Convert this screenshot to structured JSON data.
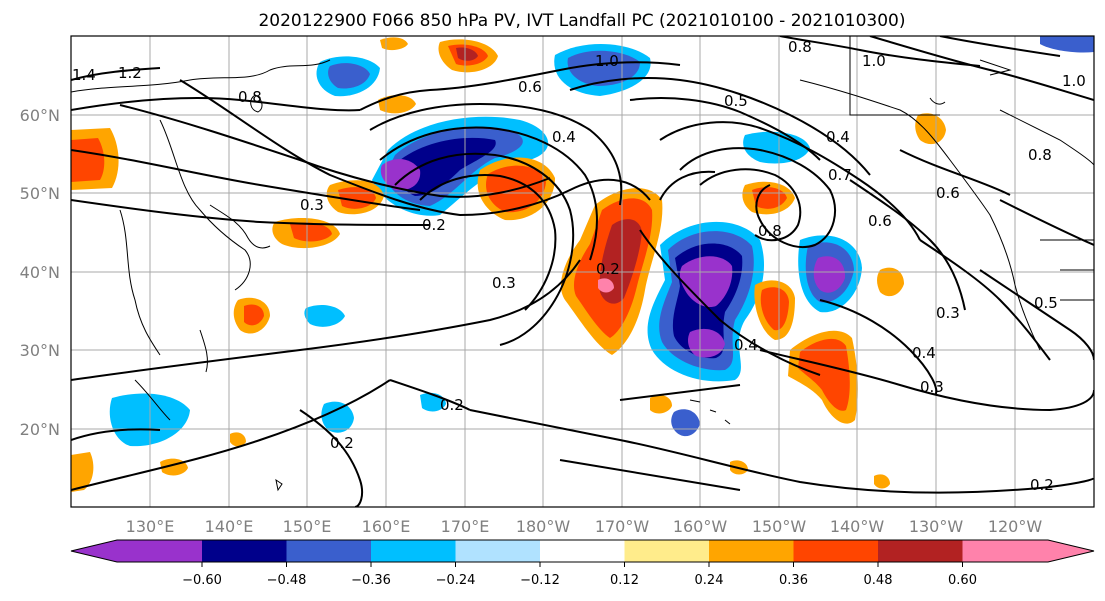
{
  "title": "2020122900 F066 850 hPa PV, IVT Landfall PC (2021010100 - 2021010300)",
  "lat_ticks": [
    "60°N",
    "50°N",
    "40°N",
    "30°N",
    "20°N"
  ],
  "lon_ticks": [
    "130°E",
    "140°E",
    "150°E",
    "160°E",
    "170°E",
    "180°W",
    "170°W",
    "160°W",
    "150°W",
    "140°W",
    "130°W",
    "120°W"
  ],
  "colorbar": {
    "colors": [
      "#9932cc",
      "#00008b",
      "#3a5fcd",
      "#00bfff",
      "#b0e2ff",
      "#ffffff",
      "#ffec8b",
      "#ffa500",
      "#ff4500",
      "#b22222",
      "#ff82ab"
    ],
    "tick_labels": [
      "−0.60",
      "−0.48",
      "−0.36",
      "−0.24",
      "−0.12",
      "0.12",
      "0.24",
      "0.36",
      "0.48",
      "0.60"
    ]
  },
  "contour_labels": [
    "1.4",
    "1.2",
    "0.8",
    "1.0",
    "0.8",
    "1.0",
    "1.0",
    "0.5",
    "0.4",
    "0.4",
    "0.6",
    "0.6",
    "0.7",
    "0.8",
    "0.6",
    "0.8",
    "0.3",
    "0.2",
    "0.3",
    "0.2",
    "0.2",
    "0.4",
    "0.4",
    "0.3",
    "0.3",
    "0.5",
    "0.2",
    "0.2"
  ]
}
